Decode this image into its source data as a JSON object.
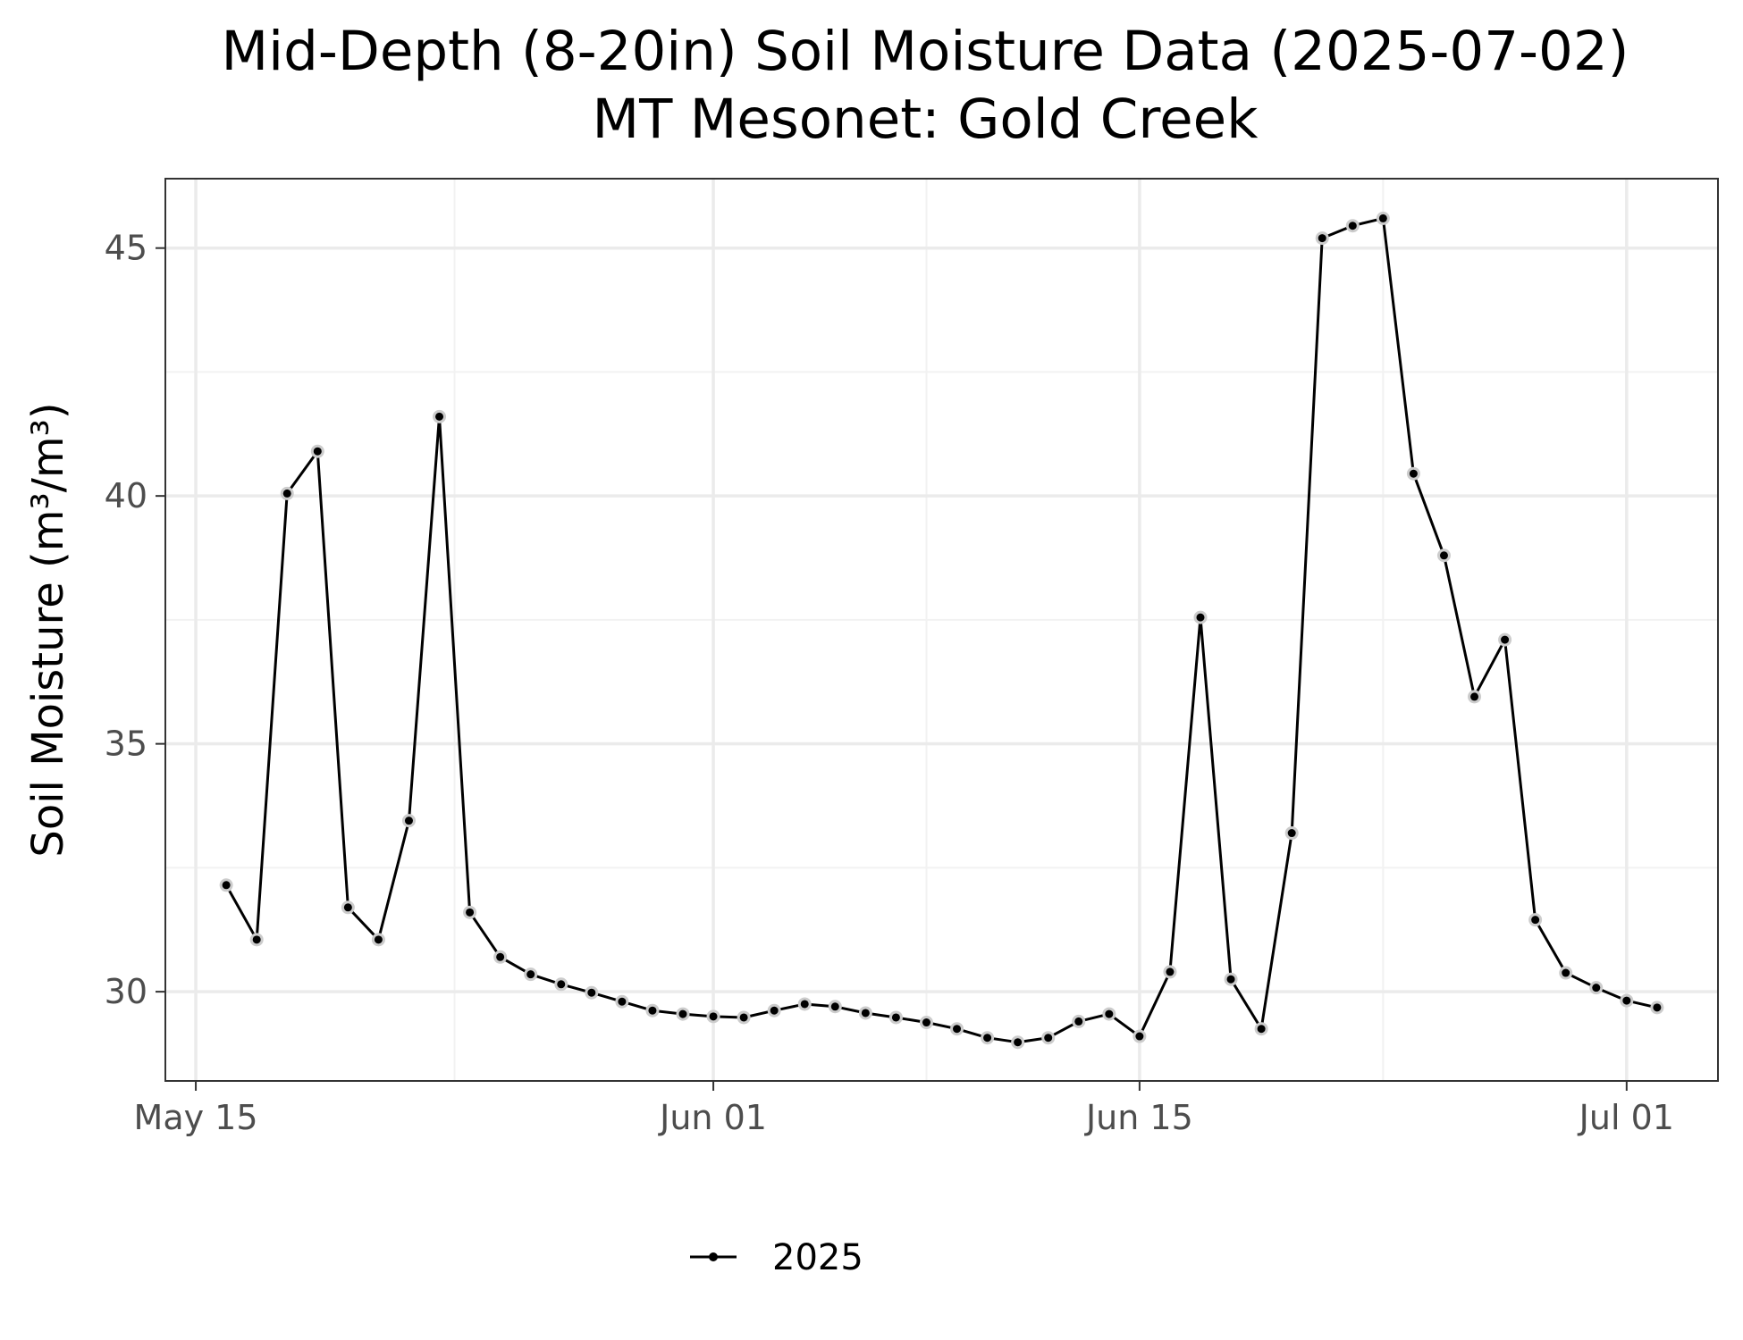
{
  "colors": {
    "background": "#ffffff",
    "panel_border": "#333333",
    "major_grid": "#ebebeb",
    "minor_grid": "#f2f2f2",
    "series_line": "#000000",
    "point_fill": "#000000",
    "point_halo": "#cccccc",
    "tick_text": "#4d4d4d"
  },
  "chart_data": {
    "type": "line",
    "title": "Mid-Depth (8-20in) Soil Moisture Data (2025-07-02)",
    "subtitle": "MT Mesonet: Gold Creek",
    "xlabel": "",
    "ylabel": "Soil Moisture (m³/m³)",
    "grid": true,
    "legend_position": "bottom",
    "x_ticks": [
      "2025-05-15",
      "2025-06-01",
      "2025-06-15",
      "2025-07-01"
    ],
    "x_tick_labels": [
      "May 15",
      "Jun 01",
      "Jun 15",
      "Jul 01"
    ],
    "xlim": [
      "2025-05-14",
      "2025-07-04"
    ],
    "y_ticks": [
      30,
      35,
      40,
      45
    ],
    "y_tick_labels": [
      "30",
      "35",
      "40",
      "45"
    ],
    "ylim": [
      28.2,
      46.4
    ],
    "series": [
      {
        "name": "2025",
        "x": [
          "2025-05-16",
          "2025-05-17",
          "2025-05-18",
          "2025-05-19",
          "2025-05-20",
          "2025-05-21",
          "2025-05-22",
          "2025-05-23",
          "2025-05-24",
          "2025-05-25",
          "2025-05-26",
          "2025-05-27",
          "2025-05-28",
          "2025-05-29",
          "2025-05-30",
          "2025-05-31",
          "2025-06-01",
          "2025-06-02",
          "2025-06-03",
          "2025-06-04",
          "2025-06-05",
          "2025-06-06",
          "2025-06-07",
          "2025-06-08",
          "2025-06-09",
          "2025-06-10",
          "2025-06-11",
          "2025-06-12",
          "2025-06-13",
          "2025-06-14",
          "2025-06-15",
          "2025-06-16",
          "2025-06-17",
          "2025-06-18",
          "2025-06-19",
          "2025-06-20",
          "2025-06-21",
          "2025-06-22",
          "2025-06-23",
          "2025-06-24",
          "2025-06-25",
          "2025-06-26",
          "2025-06-27",
          "2025-06-28",
          "2025-06-29",
          "2025-06-30",
          "2025-07-01",
          "2025-07-02"
        ],
        "values": [
          32.15,
          31.05,
          40.05,
          40.9,
          31.7,
          31.05,
          33.45,
          41.6,
          31.6,
          30.7,
          30.35,
          30.15,
          29.98,
          29.8,
          29.62,
          29.55,
          29.5,
          29.48,
          29.62,
          29.75,
          29.7,
          29.57,
          29.48,
          29.38,
          29.25,
          29.07,
          28.98,
          29.07,
          29.4,
          29.55,
          29.1,
          30.4,
          37.55,
          30.25,
          29.25,
          33.2,
          45.2,
          45.45,
          45.6,
          40.45,
          38.8,
          35.95,
          37.1,
          31.45,
          30.38,
          30.08,
          29.82,
          29.68
        ]
      }
    ]
  }
}
